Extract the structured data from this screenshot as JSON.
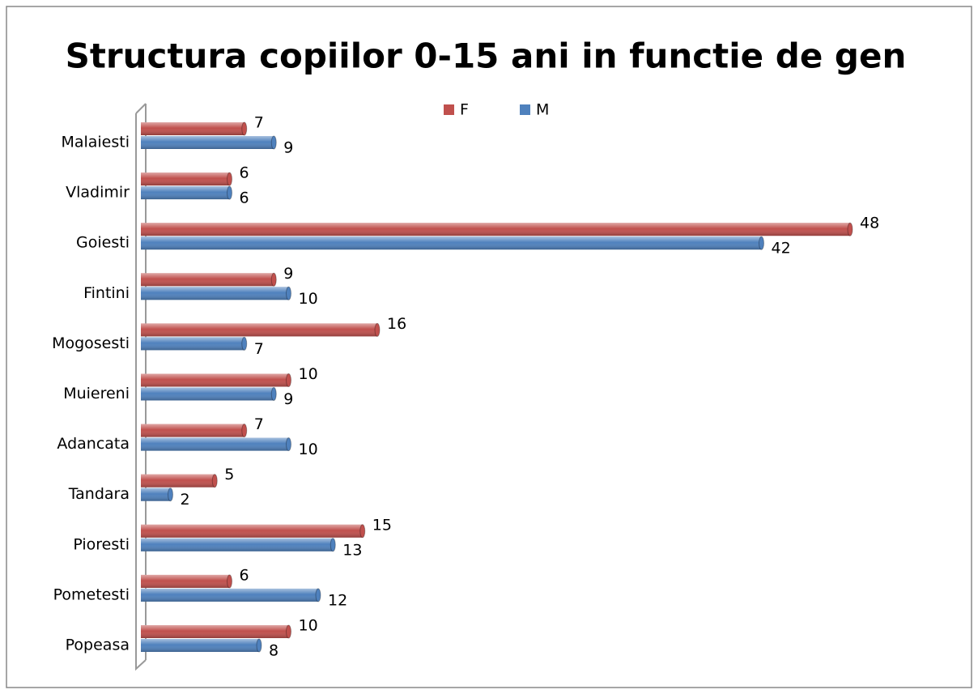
{
  "chart_data": {
    "type": "bar",
    "orientation": "horizontal",
    "title": "Structura copiilor 0-15 ani in functie de gen",
    "categories": [
      "Malaiesti",
      "Vladimir",
      "Goiesti",
      "Fintini",
      "Mogosesti",
      "Muiereni",
      "Adancata",
      "Tandara",
      "Pioresti",
      "Pometesti",
      "Popeasa"
    ],
    "series": [
      {
        "name": "F",
        "color": "#c0504d",
        "values": [
          7,
          6,
          48,
          9,
          16,
          10,
          7,
          5,
          15,
          6,
          10
        ]
      },
      {
        "name": "M",
        "color": "#4f81bd",
        "values": [
          9,
          6,
          42,
          10,
          7,
          9,
          10,
          2,
          13,
          12,
          8
        ]
      }
    ],
    "legend": "top"
  }
}
